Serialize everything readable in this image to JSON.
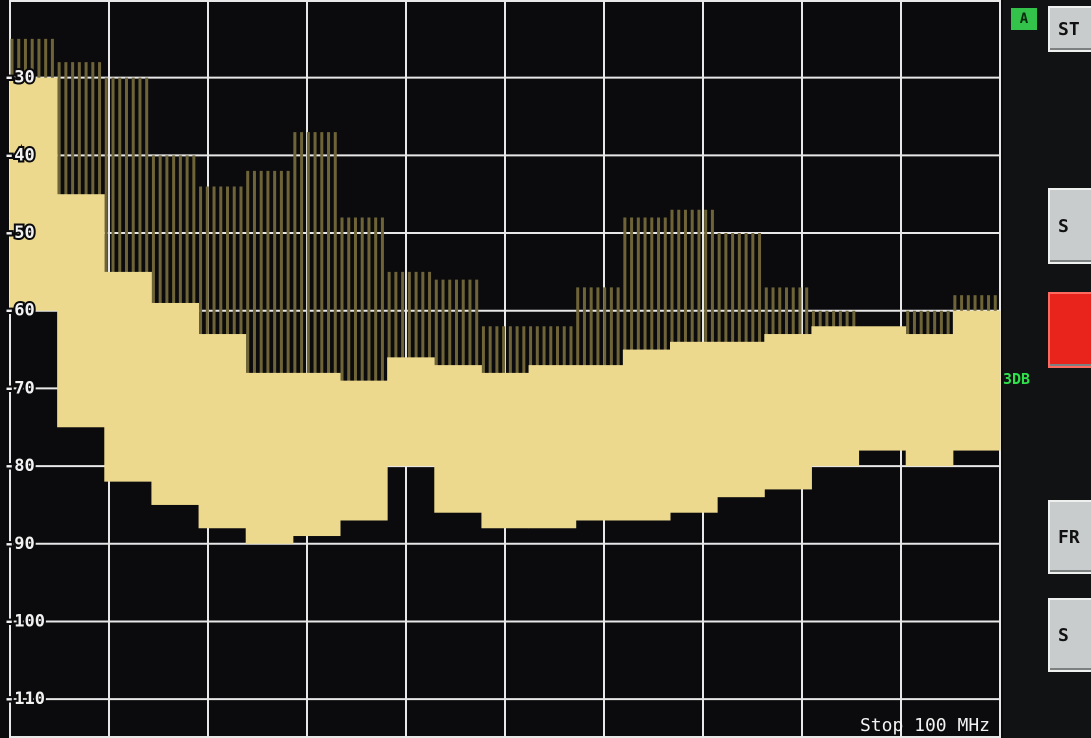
{
  "chart_data": {
    "type": "spectrum",
    "series": [
      {
        "color": "#6e6438",
        "values": [
          -25,
          -28,
          -30,
          -40,
          -44,
          -42,
          -37,
          -48,
          -55,
          -56,
          -62,
          -62,
          -57,
          -48,
          -47,
          -50,
          -57,
          -60,
          -64,
          -60,
          -58
        ]
      },
      {
        "color": "#ecd98e",
        "values": [
          -30,
          -45,
          -55,
          -59,
          -63,
          -68,
          -68,
          -69,
          -66,
          -67,
          -68,
          -67,
          -67,
          -65,
          -64,
          -64,
          -63,
          -62,
          -62,
          -63,
          -60
        ]
      },
      {
        "color": "#ecd98e",
        "values": [
          -60,
          -75,
          -82,
          -85,
          -88,
          -90,
          -89,
          -87,
          -80,
          -86,
          -88,
          -88,
          -87,
          -87,
          -86,
          -84,
          -83,
          -80,
          -78,
          -80,
          -78
        ]
      }
    ],
    "ylim": [
      -115,
      -20
    ],
    "yticks": [
      -30,
      -40,
      -50,
      -60,
      -70,
      -80,
      -90,
      -100,
      -110
    ],
    "grid": true,
    "annotation": "Stop 100 MHz"
  },
  "panel": {
    "badge": "A",
    "marker": "3DB",
    "buttons": [
      "ST",
      "S",
      "FR",
      "S"
    ]
  }
}
